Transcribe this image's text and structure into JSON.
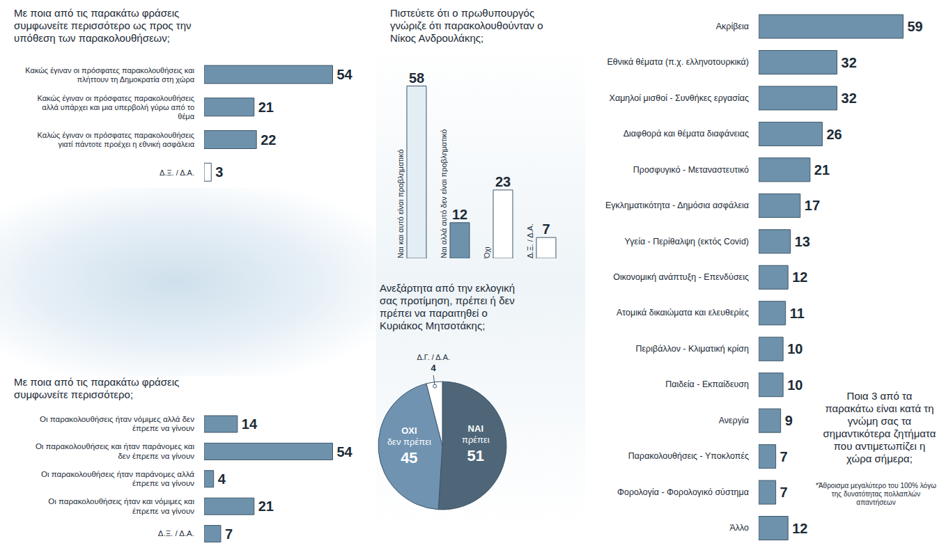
{
  "chart_data": [
    {
      "type": "bar",
      "orientation": "horizontal",
      "title": "Με ποια από τις παρακάτω φράσεις συμφωνείτε περισσότερο ως προς την υπόθεση των παρακολουθήσεων;",
      "categories": [
        "Κακώς έγιναν οι πρόσφατες παρακολουθήσεις και πλήττουν τη Δημοκρατία στη χώρα",
        "Κακώς έγιναν οι πρόσφατες παρακολουθήσεις αλλά υπάρχει και μια υπερβολή γύρω από το θέμα",
        "Καλώς έγιναν οι πρόσφατες παρακολουθήσεις γιατί πάντοτε προέχει η εθνική ασφάλεια",
        "Δ.Ξ. / Δ.Α."
      ],
      "values": [
        54,
        21,
        22,
        3
      ],
      "colors": [
        "#6e92ab",
        "#6e92ab",
        "#6e92ab",
        "#ffffff"
      ],
      "xlim": [
        0,
        60
      ],
      "data_labels": true,
      "tick_labels": "y"
    },
    {
      "type": "bar",
      "title": "Πιστεύετε ότι ο πρωθυπουργός γνώριζε ότι παρακολουθούνταν ο Νίκος Ανδρουλάκης;",
      "categories": [
        "Ναι και αυτό είναι προβληματικό",
        "Ναι αλλά αυτό δεν είναι προβληματικό",
        "Όχι",
        "Δ.Ξ. / Δ.Α."
      ],
      "values": [
        58,
        12,
        23,
        7
      ],
      "colors": [
        "#e3edf4",
        "#6e92ab",
        "#ffffff",
        "#ffffff"
      ],
      "ylim": [
        0,
        60
      ],
      "data_labels": true,
      "tick_labels": false
    },
    {
      "type": "pie",
      "title": "Ανεξάρτητα από την εκλογική σας προτίμηση, πρέπει ή δεν πρέπει να παραιτηθεί ο Κυριάκος Μητσοτάκης;",
      "categories": [
        "ΝΑΙ πρέπει",
        "ΟΧΙ δεν πρέπει",
        "Δ.Γ. / Δ.Α."
      ],
      "values": [
        51,
        45,
        4
      ],
      "colors": [
        "#4f6679",
        "#6f93b1",
        "#ffffff"
      ],
      "data_labels": true
    },
    {
      "type": "bar",
      "orientation": "horizontal",
      "title": "Με ποια από τις παρακάτω φράσεις συμφωνείτε περισσότερο;",
      "categories": [
        "Οι παρακολουθήσεις ήταν νόμιμες αλλά δεν έπρεπε να γίνουν",
        "Οι παρακολουθήσεις και ήταν παράνομες και δεν έπρεπε να γίνουν",
        "Οι παρακολουθήσεις ήταν παράνομες αλλά έπρεπε να γίνουν",
        "Οι παρακολουθήσεις ήταν και νόμιμες και έπρεπε να γίνουν",
        "Δ.Ξ. / Δ.Α."
      ],
      "values": [
        14,
        54,
        4,
        21,
        7
      ],
      "color": "#6e92ab",
      "xlim": [
        0,
        60
      ],
      "data_labels": true,
      "tick_labels": "y"
    },
    {
      "type": "bar",
      "orientation": "horizontal",
      "title": "Ποια 3 από τα παρακάτω είναι κατά τη γνώμη σας τα σημαντικότερα ζητήματα που αντιμετωπίζει η χώρα σήμερα;",
      "annotations": [
        "*Άθροισμα μεγαλύτερο του 100% λόγω της δυνατότητας πολλαπλών απαντήσεων"
      ],
      "categories": [
        "Ακρίβεια",
        "Εθνικά θέματα (π.χ. ελληνοτουρκικά)",
        "Χαμηλοί μισθοί - Συνθήκες εργασίας",
        "Διαφθορά και θέματα διαφάνειας",
        "Προσφυγικό - Μεταναστευτικό",
        "Εγκληματικότητα - Δημόσια ασφάλεια",
        "Υγεία - Περίθαλψη (εκτός Covid)",
        "Οικονομική ανάπτυξη - Επενδύσεις",
        "Ατομικά δικαιώματα και ελευθερίες",
        "Περιβάλλον - Κλιματική κρίση",
        "Παιδεία - Εκπαίδευση",
        "Ανεργία",
        "Παρακολουθήσεις - Υποκλοπές",
        "Φορολογία - Φορολογικό σύστημα",
        "Άλλο"
      ],
      "values": [
        59,
        32,
        32,
        26,
        21,
        17,
        13,
        12,
        11,
        10,
        10,
        9,
        7,
        7,
        12
      ],
      "color": "#6e92ab",
      "xlim": [
        0,
        60
      ],
      "data_labels": true,
      "tick_labels": "y"
    }
  ]
}
